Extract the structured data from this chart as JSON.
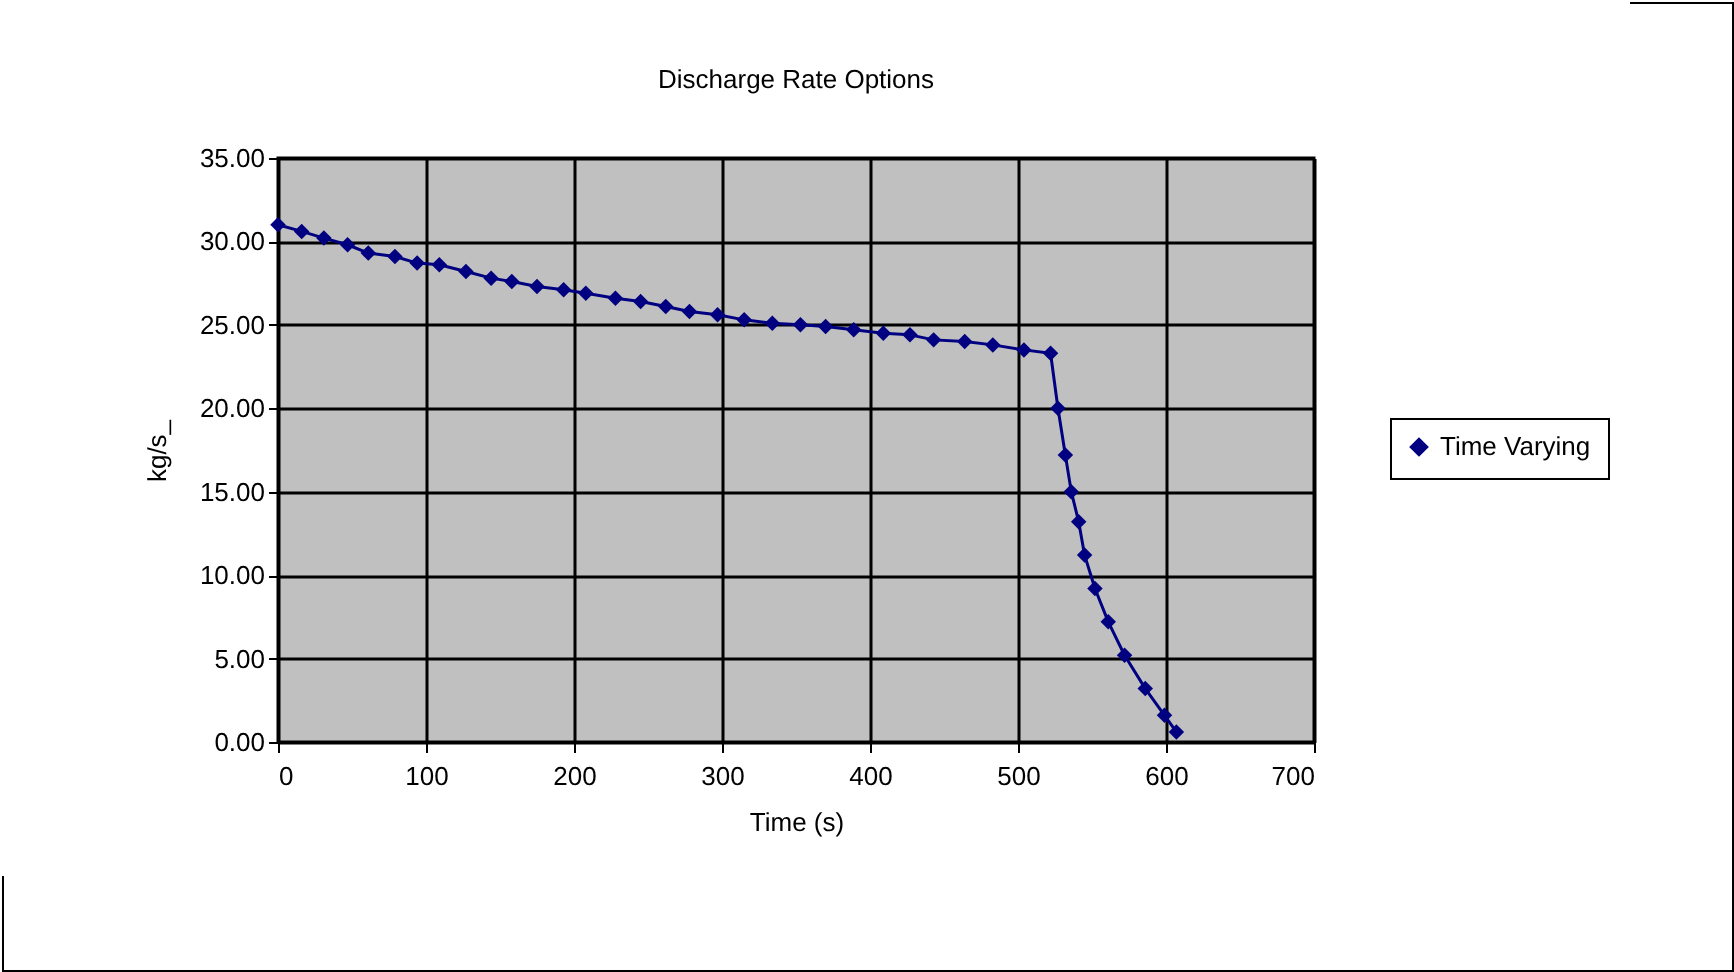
{
  "chart_data": {
    "type": "line",
    "title": "Discharge Rate Options",
    "xlabel": "Time (s)",
    "ylabel": "kg/s_",
    "xlim": [
      0,
      700
    ],
    "xticks": [
      0,
      100,
      200,
      300,
      400,
      500,
      600,
      700
    ],
    "ylim": [
      0,
      35
    ],
    "yticks": [
      {
        "value": 0,
        "label": "0.00"
      },
      {
        "value": 5,
        "label": "5.00"
      },
      {
        "value": 10,
        "label": "10.00"
      },
      {
        "value": 15,
        "label": "15.00"
      },
      {
        "value": 20,
        "label": "20.00"
      },
      {
        "value": 25,
        "label": "25.00"
      },
      {
        "value": 30,
        "label": "30.00"
      },
      {
        "value": 35,
        "label": "35.00"
      }
    ],
    "grid": true,
    "legend": "right",
    "marker": "diamond",
    "line_style": "solid",
    "series": [
      {
        "name": "Time Varying",
        "color": "#000080",
        "x": [
          0,
          16,
          31,
          47,
          61,
          79,
          94,
          109,
          127,
          144,
          158,
          175,
          193,
          208,
          228,
          245,
          262,
          278,
          297,
          315,
          334,
          353,
          370,
          389,
          409,
          427,
          443,
          464,
          483,
          504,
          522,
          527,
          532,
          536,
          541,
          545,
          552,
          561,
          572,
          586,
          599,
          607
        ],
        "values": [
          31.0,
          30.6,
          30.2,
          29.8,
          29.3,
          29.1,
          28.7,
          28.6,
          28.2,
          27.8,
          27.6,
          27.3,
          27.1,
          26.9,
          26.6,
          26.4,
          26.1,
          25.8,
          25.6,
          25.3,
          25.1,
          25.0,
          24.9,
          24.7,
          24.5,
          24.4,
          24.1,
          24.0,
          23.8,
          23.5,
          23.3,
          20.0,
          17.2,
          15.0,
          13.2,
          11.2,
          9.2,
          7.2,
          5.2,
          3.2,
          1.6,
          0.6
        ]
      }
    ]
  }
}
